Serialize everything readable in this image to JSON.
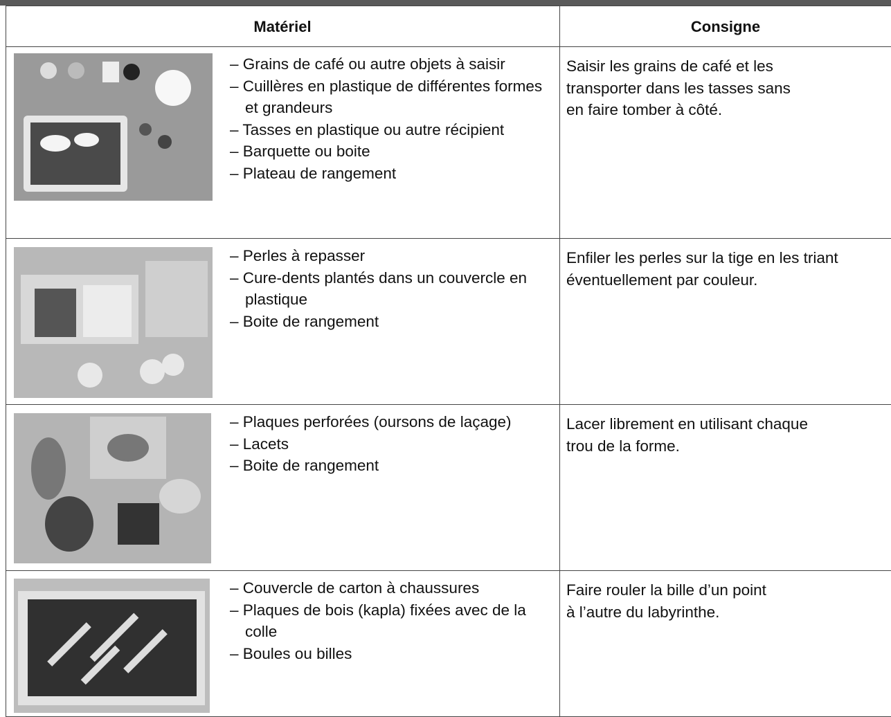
{
  "table": {
    "headers": [
      "Matériel",
      "Consigne"
    ],
    "rows": [
      {
        "materiel": [
          "– Grains de café ou autre objets à saisir",
          "– Cuillères en plastique de différentes formes et grandeurs",
          "– Tasses en plastique ou autre récipient",
          "– Barquette ou boite",
          "– Plateau de rangement"
        ],
        "consigne": [
          "Saisir les grains de café et les",
          "transporter dans les tasses sans",
          "en faire tomber à côté."
        ]
      },
      {
        "materiel": [
          "– Perles à repasser",
          "– Cure-dents plantés dans un couvercle en plastique",
          "– Boite de rangement"
        ],
        "consigne": [
          "Enfiler les perles sur la tige en les triant",
          "éventuellement par couleur."
        ]
      },
      {
        "materiel": [
          "– Plaques perforées (oursons de laçage)",
          "– Lacets",
          "– Boite de rangement"
        ],
        "consigne": [
          "Lacer librement en utilisant chaque",
          "trou de la forme."
        ]
      },
      {
        "materiel": [
          "– Couvercle de carton à chaussures",
          "– Plaques de bois (kapla) fixées avec de la colle",
          "– Boules ou billes"
        ],
        "consigne": [
          "Faire rouler la bille d’un point",
          "à l’autre du labyrinthe."
        ]
      }
    ]
  }
}
